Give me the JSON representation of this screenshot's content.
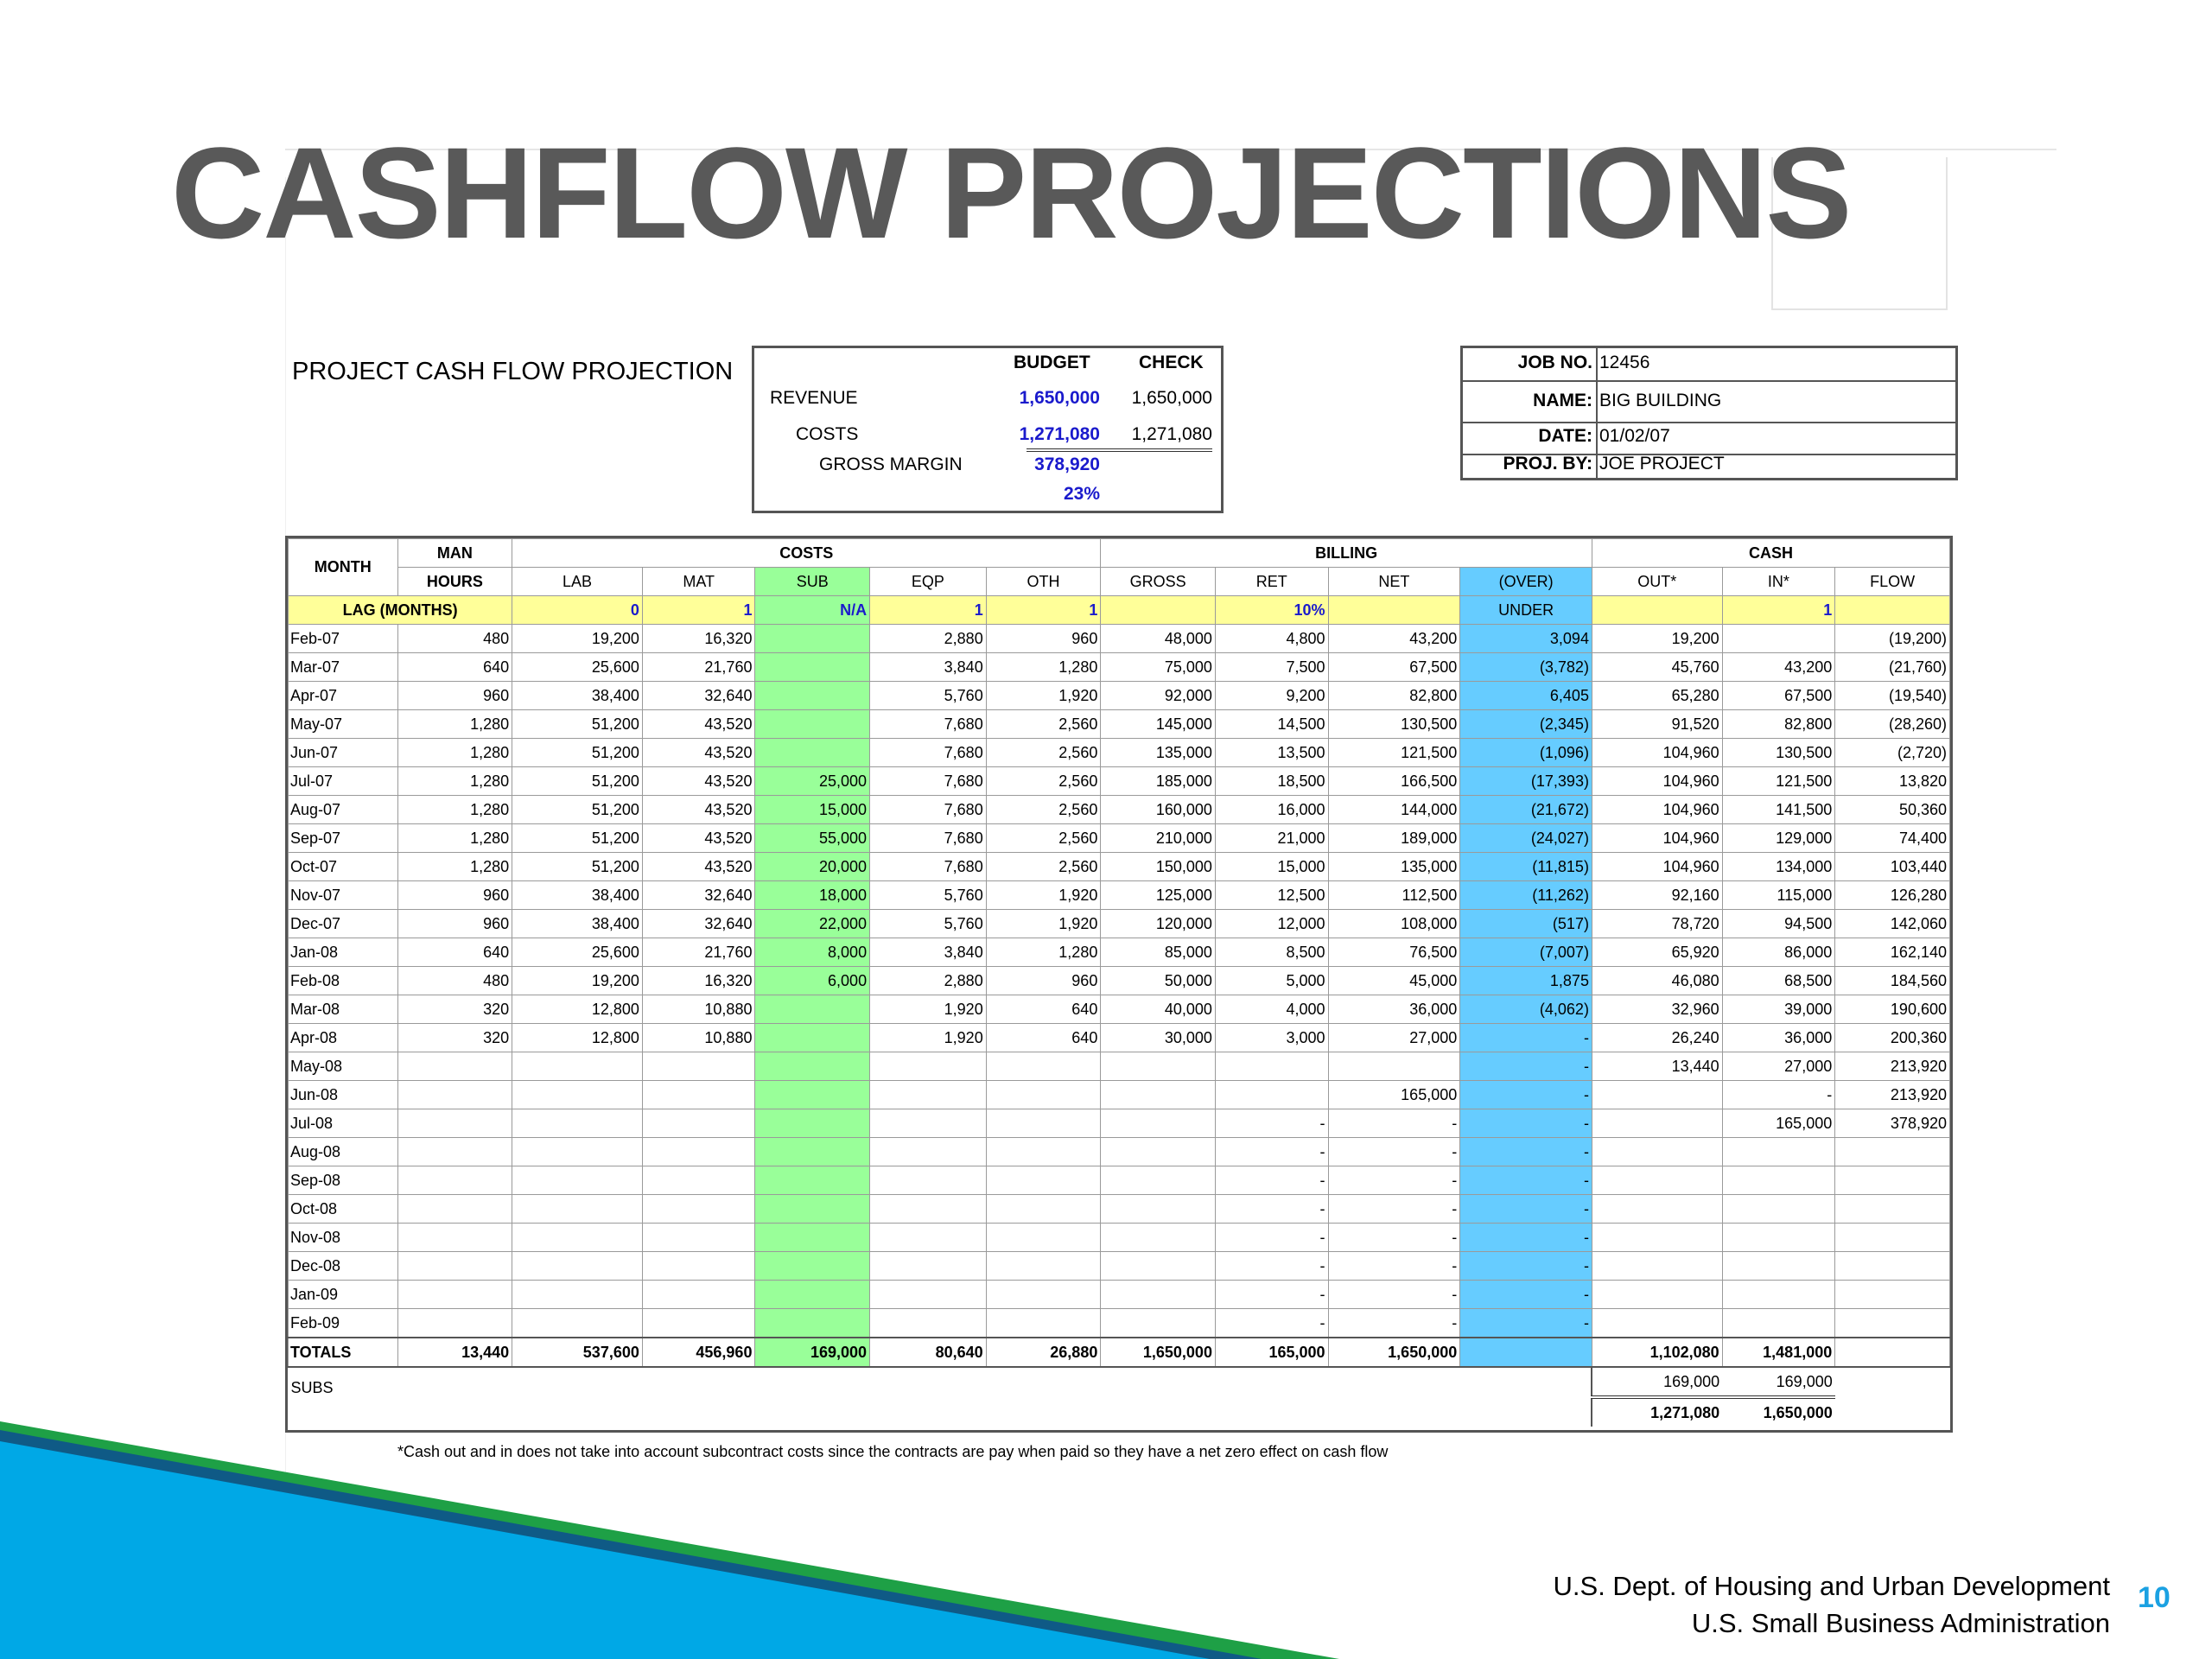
{
  "title": "CASHFLOW PROJECTIONS",
  "sheet_title": "PROJECT CASH FLOW PROJECTION",
  "budget": {
    "col_budget": "BUDGET",
    "col_check": "CHECK",
    "revenue_label": "REVENUE",
    "revenue_budget": "1,650,000",
    "revenue_check": "1,650,000",
    "costs_label": "COSTS",
    "costs_budget": "1,271,080",
    "costs_check": "1,271,080",
    "gm_label": "GROSS MARGIN",
    "gm_value": "378,920",
    "gm_pct": "23%"
  },
  "job": {
    "job_no_label": "JOB NO.",
    "job_no": "12456",
    "name_label": "NAME:",
    "name": "BIG BUILDING",
    "date_label": "DATE:",
    "date": "01/02/07",
    "proj_by_label": "PROJ. BY:",
    "proj_by": "JOE PROJECT"
  },
  "table": {
    "h_month": "MONTH",
    "h_man": "MAN",
    "h_hours": "HOURS",
    "h_costs": "COSTS",
    "h_billing": "BILLING",
    "h_cash": "CASH",
    "sub": [
      "LAB",
      "MAT",
      "SUB",
      "EQP",
      "OTH",
      "GROSS",
      "RET",
      "NET",
      "(OVER)",
      "OUT*",
      "IN*",
      "FLOW"
    ],
    "under": "UNDER",
    "lag_label": "LAG (MONTHS)",
    "lag": {
      "lab": "0",
      "mat": "1",
      "sub": "N/A",
      "eqp": "1",
      "oth": "1",
      "ret": "10%",
      "in": "1"
    },
    "rows": [
      [
        "Feb-07",
        "480",
        "19,200",
        "16,320",
        "",
        "2,880",
        "960",
        "48,000",
        "4,800",
        "43,200",
        "3,094",
        "19,200",
        "",
        "(19,200)"
      ],
      [
        "Mar-07",
        "640",
        "25,600",
        "21,760",
        "",
        "3,840",
        "1,280",
        "75,000",
        "7,500",
        "67,500",
        "(3,782)",
        "45,760",
        "43,200",
        "(21,760)"
      ],
      [
        "Apr-07",
        "960",
        "38,400",
        "32,640",
        "",
        "5,760",
        "1,920",
        "92,000",
        "9,200",
        "82,800",
        "6,405",
        "65,280",
        "67,500",
        "(19,540)"
      ],
      [
        "May-07",
        "1,280",
        "51,200",
        "43,520",
        "",
        "7,680",
        "2,560",
        "145,000",
        "14,500",
        "130,500",
        "(2,345)",
        "91,520",
        "82,800",
        "(28,260)"
      ],
      [
        "Jun-07",
        "1,280",
        "51,200",
        "43,520",
        "",
        "7,680",
        "2,560",
        "135,000",
        "13,500",
        "121,500",
        "(1,096)",
        "104,960",
        "130,500",
        "(2,720)"
      ],
      [
        "Jul-07",
        "1,280",
        "51,200",
        "43,520",
        "25,000",
        "7,680",
        "2,560",
        "185,000",
        "18,500",
        "166,500",
        "(17,393)",
        "104,960",
        "121,500",
        "13,820"
      ],
      [
        "Aug-07",
        "1,280",
        "51,200",
        "43,520",
        "15,000",
        "7,680",
        "2,560",
        "160,000",
        "16,000",
        "144,000",
        "(21,672)",
        "104,960",
        "141,500",
        "50,360"
      ],
      [
        "Sep-07",
        "1,280",
        "51,200",
        "43,520",
        "55,000",
        "7,680",
        "2,560",
        "210,000",
        "21,000",
        "189,000",
        "(24,027)",
        "104,960",
        "129,000",
        "74,400"
      ],
      [
        "Oct-07",
        "1,280",
        "51,200",
        "43,520",
        "20,000",
        "7,680",
        "2,560",
        "150,000",
        "15,000",
        "135,000",
        "(11,815)",
        "104,960",
        "134,000",
        "103,440"
      ],
      [
        "Nov-07",
        "960",
        "38,400",
        "32,640",
        "18,000",
        "5,760",
        "1,920",
        "125,000",
        "12,500",
        "112,500",
        "(11,262)",
        "92,160",
        "115,000",
        "126,280"
      ],
      [
        "Dec-07",
        "960",
        "38,400",
        "32,640",
        "22,000",
        "5,760",
        "1,920",
        "120,000",
        "12,000",
        "108,000",
        "(517)",
        "78,720",
        "94,500",
        "142,060"
      ],
      [
        "Jan-08",
        "640",
        "25,600",
        "21,760",
        "8,000",
        "3,840",
        "1,280",
        "85,000",
        "8,500",
        "76,500",
        "(7,007)",
        "65,920",
        "86,000",
        "162,140"
      ],
      [
        "Feb-08",
        "480",
        "19,200",
        "16,320",
        "6,000",
        "2,880",
        "960",
        "50,000",
        "5,000",
        "45,000",
        "1,875",
        "46,080",
        "68,500",
        "184,560"
      ],
      [
        "Mar-08",
        "320",
        "12,800",
        "10,880",
        "",
        "1,920",
        "640",
        "40,000",
        "4,000",
        "36,000",
        "(4,062)",
        "32,960",
        "39,000",
        "190,600"
      ],
      [
        "Apr-08",
        "320",
        "12,800",
        "10,880",
        "",
        "1,920",
        "640",
        "30,000",
        "3,000",
        "27,000",
        "-",
        "26,240",
        "36,000",
        "200,360"
      ],
      [
        "May-08",
        "",
        "",
        "",
        "",
        "",
        "",
        "",
        "",
        "",
        "-",
        "13,440",
        "27,000",
        "213,920"
      ],
      [
        "Jun-08",
        "",
        "",
        "",
        "",
        "",
        "",
        "",
        "",
        "165,000",
        "-",
        "",
        "-",
        "213,920"
      ],
      [
        "Jul-08",
        "",
        "",
        "",
        "",
        "",
        "",
        "",
        "-",
        "-",
        "-",
        "",
        "165,000",
        "378,920"
      ],
      [
        "Aug-08",
        "",
        "",
        "",
        "",
        "",
        "",
        "",
        "-",
        "-",
        "-",
        "",
        "",
        ""
      ],
      [
        "Sep-08",
        "",
        "",
        "",
        "",
        "",
        "",
        "",
        "-",
        "-",
        "-",
        "",
        "",
        ""
      ],
      [
        "Oct-08",
        "",
        "",
        "",
        "",
        "",
        "",
        "",
        "-",
        "-",
        "-",
        "",
        "",
        ""
      ],
      [
        "Nov-08",
        "",
        "",
        "",
        "",
        "",
        "",
        "",
        "-",
        "-",
        "-",
        "",
        "",
        ""
      ],
      [
        "Dec-08",
        "",
        "",
        "",
        "",
        "",
        "",
        "",
        "-",
        "-",
        "-",
        "",
        "",
        ""
      ],
      [
        "Jan-09",
        "",
        "",
        "",
        "",
        "",
        "",
        "",
        "-",
        "-",
        "-",
        "",
        "",
        ""
      ],
      [
        "Feb-09",
        "",
        "",
        "",
        "",
        "",
        "",
        "",
        "-",
        "-",
        "-",
        "",
        "",
        ""
      ]
    ],
    "totals": [
      "TOTALS",
      "13,440",
      "537,600",
      "456,960",
      "169,000",
      "80,640",
      "26,880",
      "1,650,000",
      "165,000",
      "1,650,000",
      "",
      "1,102,080",
      "1,481,000",
      ""
    ],
    "subs_label": "SUBS",
    "subs_out": "169,000",
    "subs_in": "169,000",
    "subs_total_out": "1,271,080",
    "subs_total_in": "1,650,000"
  },
  "footnote": "*Cash out and in does not take into account subcontract costs since the contracts are pay when paid so they have a net zero effect on cash flow",
  "footer": {
    "line1": "U.S. Dept. of Housing and Urban Development",
    "line2": "U.S. Small Business Administration",
    "page": "10"
  }
}
